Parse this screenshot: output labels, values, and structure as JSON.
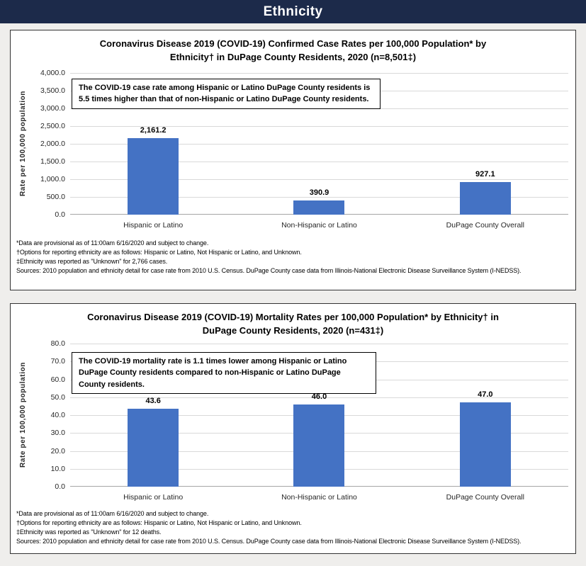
{
  "header": {
    "title": "Ethnicity"
  },
  "colors": {
    "header_bg": "#1c2a4a",
    "page_bg": "#efeeec",
    "panel_bg": "#ffffff",
    "bar": "#4472c4",
    "gridline": "#d9d9d9"
  },
  "chart_data": [
    {
      "type": "bar",
      "title": "Coronavirus Disease 2019 (COVID-19) Confirmed Case Rates per 100,000 Population* by Ethnicity† in DuPage County Residents, 2020 (n=8,501‡)",
      "annotation": "The COVID-19 case rate among Hispanic or Latino DuPage County residents is 5.5 times higher than that of non-Hispanic or Latino DuPage County residents.",
      "xlabel": "",
      "ylabel": "Rate per 100,000 population",
      "ylim": [
        0,
        4000
      ],
      "ytick_step": 500,
      "yticks": [
        "4,000.0",
        "3,500.0",
        "3,000.0",
        "2,500.0",
        "2,000.0",
        "1,500.0",
        "1,000.0",
        "500.0",
        "0.0"
      ],
      "categories": [
        "Hispanic or Latino",
        "Non-Hispanic or Latino",
        "DuPage County Overall"
      ],
      "values": [
        2161.2,
        390.9,
        927.1
      ],
      "value_labels": [
        "2,161.2",
        "390.9",
        "927.1"
      ],
      "grid": true,
      "legend": "none",
      "bar_color": "#4472c4",
      "footnotes": [
        "*Data are provisional as of 11:00am 6/16/2020 and subject to change.",
        "†Options for reporting ethnicity are as follows: Hispanic or Latino, Not Hispanic or Latino, and Unknown.",
        "‡Ethnicity was reported as \"Unknown\" for 2,766 cases.",
        "Sources: 2010 population and ethnicity detail for case rate from 2010 U.S. Census. DuPage County case data from Illinois-National Electronic Disease Surveillance System (I-NEDSS)."
      ]
    },
    {
      "type": "bar",
      "title": "Coronavirus Disease 2019 (COVID-19) Mortality Rates per 100,000 Population* by Ethnicity† in DuPage County Residents, 2020 (n=431‡)",
      "annotation": "The COVID-19 mortality rate is 1.1 times lower among Hispanic or Latino DuPage County residents compared to non-Hispanic or Latino DuPage County residents.",
      "xlabel": "",
      "ylabel": "Rate per 100,000 population",
      "ylim": [
        0,
        80
      ],
      "ytick_step": 10,
      "yticks": [
        "80.0",
        "70.0",
        "60.0",
        "50.0",
        "40.0",
        "30.0",
        "20.0",
        "10.0",
        "0.0"
      ],
      "categories": [
        "Hispanic or Latino",
        "Non-Hispanic or Latino",
        "DuPage County Overall"
      ],
      "values": [
        43.6,
        46.0,
        47.0
      ],
      "value_labels": [
        "43.6",
        "46.0",
        "47.0"
      ],
      "grid": true,
      "legend": "none",
      "bar_color": "#4472c4",
      "footnotes": [
        "*Data are provisional as of 11:00am 6/16/2020 and subject to change.",
        "†Options for reporting ethnicity are as follows: Hispanic or Latino, Not Hispanic or Latino, and Unknown.",
        "‡Ethnicity was reported as  \"Unknown\" for 12 deaths.",
        "Sources: 2010 population and ethnicity detail for case rate from 2010 U.S. Census. DuPage County case data from Illinois-National Electronic Disease Surveillance System (I-NEDSS)."
      ]
    }
  ]
}
